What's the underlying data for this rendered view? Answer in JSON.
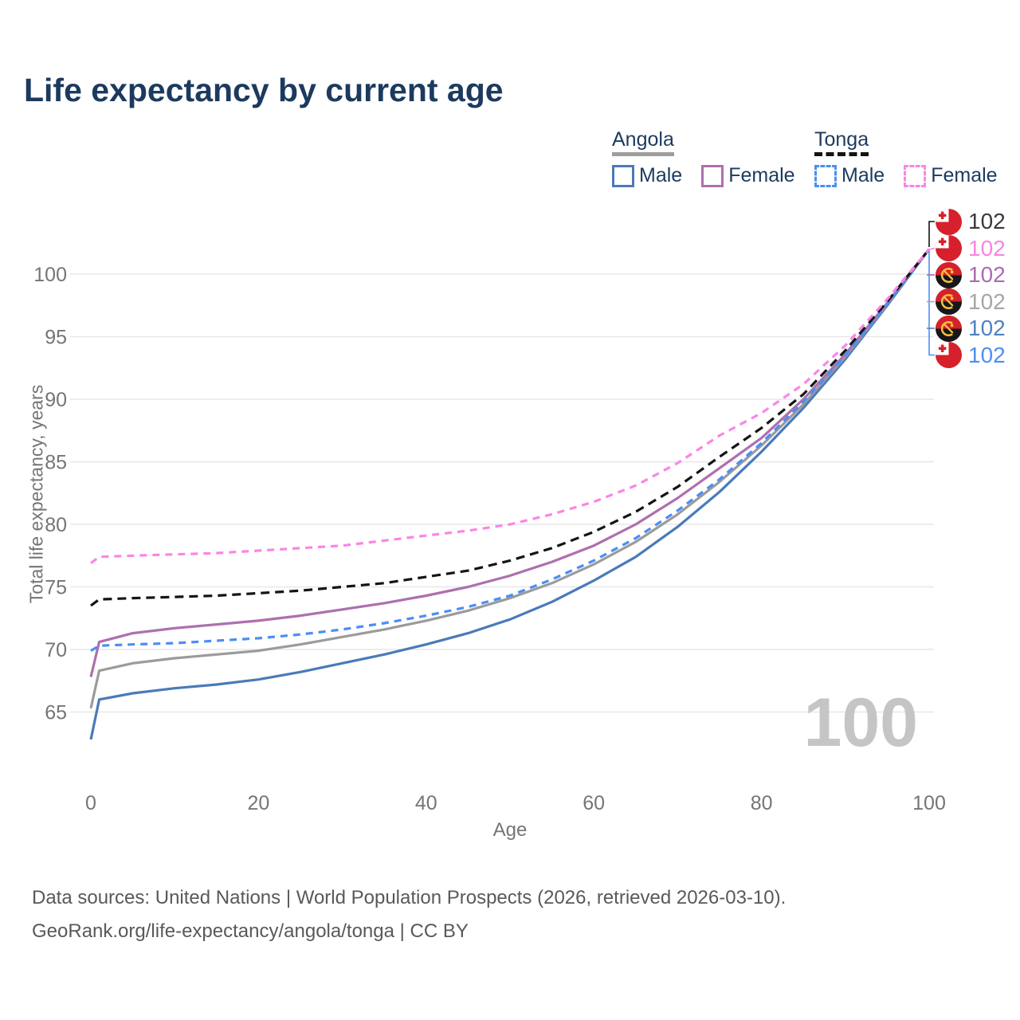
{
  "title": "Life expectancy by current age",
  "legend": {
    "groups": [
      {
        "country": "Angola",
        "line_style": "solid",
        "underline_color": "#9e9e9e",
        "items": [
          {
            "label": "Male",
            "color": "#4a7ab9",
            "dashed": false
          },
          {
            "label": "Female",
            "color": "#ae6fae",
            "dashed": false
          }
        ]
      },
      {
        "country": "Tonga",
        "line_style": "dashed",
        "underline_color": "#141414",
        "items": [
          {
            "label": "Male",
            "color": "#4a8ef5",
            "dashed": true
          },
          {
            "label": "Female",
            "color": "#fb85e4",
            "dashed": true
          }
        ]
      }
    ]
  },
  "chart_data": {
    "type": "line",
    "title": "Life expectancy by current age",
    "xlabel": "Age",
    "ylabel": "Total life expectancy, years",
    "xlim": [
      0,
      100
    ],
    "ylim": [
      61,
      103
    ],
    "xticks": [
      0,
      20,
      40,
      60,
      80,
      100
    ],
    "yticks": [
      65,
      70,
      75,
      80,
      85,
      90,
      95,
      100
    ],
    "grid": "horizontal",
    "legend_position": "top-right",
    "watermark": "100",
    "x": [
      0,
      1,
      5,
      10,
      15,
      20,
      25,
      30,
      35,
      40,
      45,
      50,
      55,
      60,
      65,
      70,
      75,
      80,
      85,
      90,
      95,
      100
    ],
    "series": [
      {
        "name": "Angola male",
        "country": "Angola",
        "sex": "male",
        "color": "#4a7ab9",
        "dashed": false,
        "dasharray": null,
        "values": [
          62.8,
          66.0,
          66.5,
          66.9,
          67.2,
          67.6,
          68.2,
          68.9,
          69.6,
          70.4,
          71.3,
          72.4,
          73.8,
          75.5,
          77.4,
          79.8,
          82.6,
          85.8,
          89.3,
          93.2,
          97.5,
          102
        ]
      },
      {
        "name": "Angola both sexes",
        "country": "Angola",
        "sex": "both",
        "color": "#9b9b9b",
        "dashed": false,
        "dasharray": null,
        "values": [
          65.3,
          68.3,
          68.9,
          69.3,
          69.6,
          69.9,
          70.4,
          71.0,
          71.6,
          72.3,
          73.1,
          74.1,
          75.3,
          76.8,
          78.6,
          80.8,
          83.4,
          86.3,
          89.6,
          93.4,
          97.6,
          102
        ]
      },
      {
        "name": "Angola female",
        "country": "Angola",
        "sex": "female",
        "color": "#ae6fae",
        "dashed": false,
        "dasharray": null,
        "values": [
          67.8,
          70.6,
          71.3,
          71.7,
          72.0,
          72.3,
          72.7,
          73.2,
          73.7,
          74.3,
          75.0,
          75.9,
          77.0,
          78.3,
          80.0,
          82.1,
          84.5,
          86.9,
          90.0,
          93.6,
          97.7,
          102
        ]
      },
      {
        "name": "Tonga male",
        "country": "Tonga",
        "sex": "male",
        "color": "#4a8ef5",
        "dashed": true,
        "dasharray": "9 7",
        "values": [
          69.9,
          70.3,
          70.4,
          70.5,
          70.7,
          70.9,
          71.2,
          71.6,
          72.1,
          72.7,
          73.4,
          74.3,
          75.6,
          77.1,
          78.9,
          81.1,
          83.6,
          86.5,
          89.8,
          93.5,
          97.6,
          102
        ]
      },
      {
        "name": "Tonga both sexes",
        "country": "Tonga",
        "sex": "both",
        "color": "#141414",
        "dashed": true,
        "dasharray": "11 7",
        "values": [
          73.5,
          74.0,
          74.1,
          74.2,
          74.3,
          74.5,
          74.7,
          75.0,
          75.3,
          75.8,
          76.3,
          77.1,
          78.1,
          79.4,
          81.0,
          83.0,
          85.4,
          87.7,
          90.4,
          93.9,
          97.8,
          102
        ]
      },
      {
        "name": "Tonga female",
        "country": "Tonga",
        "sex": "female",
        "color": "#fb85e4",
        "dashed": true,
        "dasharray": "9 7",
        "values": [
          76.9,
          77.4,
          77.5,
          77.6,
          77.7,
          77.9,
          78.1,
          78.3,
          78.7,
          79.1,
          79.5,
          80.0,
          80.8,
          81.8,
          83.1,
          84.9,
          87.1,
          88.9,
          91.2,
          94.3,
          98.0,
          102
        ]
      }
    ]
  },
  "end_labels": [
    {
      "flag": "tonga",
      "series": "Tonga both sexes",
      "value": "102",
      "color": "#3a3a3a"
    },
    {
      "flag": "tonga",
      "series": "Tonga female",
      "value": "102",
      "color": "#f884e2"
    },
    {
      "flag": "angola",
      "series": "Angola female",
      "value": "102",
      "color": "#a96cb0"
    },
    {
      "flag": "angola",
      "series": "Angola both sexes",
      "value": "102",
      "color": "#a6a6a6"
    },
    {
      "flag": "angola",
      "series": "Angola male",
      "value": "102",
      "color": "#5181c2"
    },
    {
      "flag": "tonga",
      "series": "Tonga male",
      "value": "102",
      "color": "#4f8df5"
    }
  ],
  "footer": {
    "line1": "Data sources: United Nations | World Population Prospects (2026, retrieved 2026-03-10).",
    "line2": "GeoRank.org/life-expectancy/angola/tonga | CC BY"
  }
}
